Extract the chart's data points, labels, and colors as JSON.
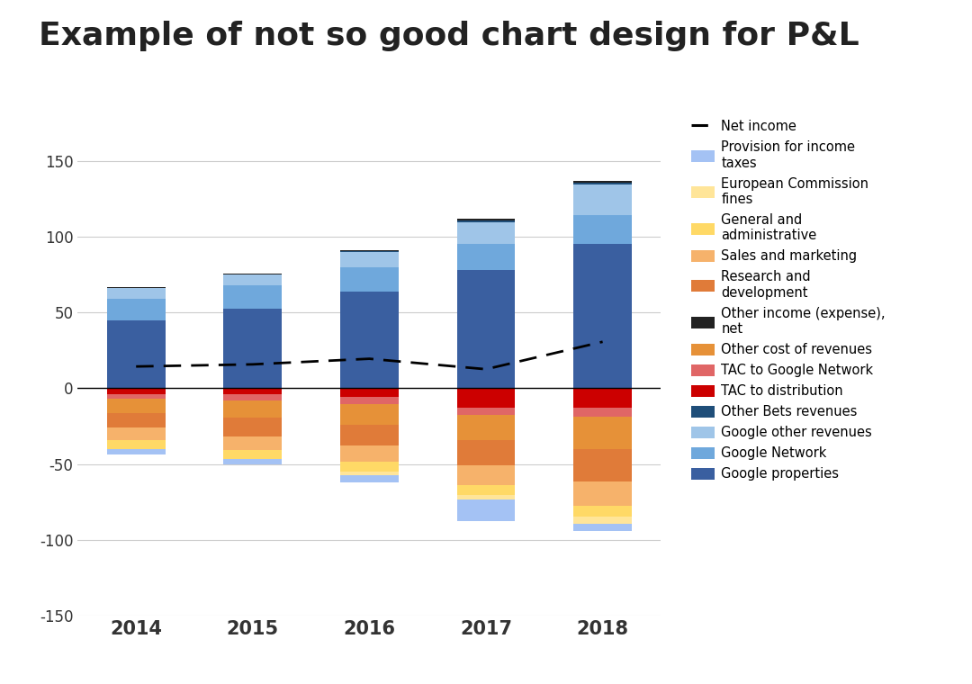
{
  "title": "Example of not so good chart design for P&L",
  "years": [
    "2014",
    "2015",
    "2016",
    "2017",
    "2018"
  ],
  "net_income": [
    14.4,
    15.8,
    19.5,
    12.6,
    30.7
  ],
  "positive_segments": [
    {
      "label": "Google properties",
      "values": [
        45.1,
        52.4,
        63.8,
        77.8,
        95.4
      ],
      "color": "#3a5fa0"
    },
    {
      "label": "Google Network",
      "values": [
        14.1,
        15.5,
        16.0,
        17.6,
        19.1
      ],
      "color": "#6fa8dc"
    },
    {
      "label": "Google other revenues",
      "values": [
        6.9,
        7.2,
        10.1,
        14.4,
        19.9
      ],
      "color": "#9fc5e8"
    },
    {
      "label": "Other Bets revenues",
      "values": [
        0.0,
        0.0,
        0.8,
        1.2,
        1.2
      ],
      "color": "#1f4e79"
    },
    {
      "label": "Other income (expense), net",
      "values": [
        0.9,
        0.3,
        0.4,
        1.0,
        1.2
      ],
      "color": "#222222"
    }
  ],
  "negative_segments": [
    {
      "label": "TAC to distribution",
      "values": [
        -3.6,
        -4.1,
        -5.9,
        -12.6,
        -12.6
      ],
      "color": "#cc0000"
    },
    {
      "label": "TAC to Google Network",
      "values": [
        -3.4,
        -3.8,
        -4.4,
        -5.0,
        -6.1
      ],
      "color": "#e06666"
    },
    {
      "label": "Other cost of revenues",
      "values": [
        -9.3,
        -11.4,
        -13.8,
        -16.5,
        -21.4
      ],
      "color": "#e69138"
    },
    {
      "label": "Research and development",
      "values": [
        -9.8,
        -12.3,
        -13.9,
        -16.6,
        -21.4
      ],
      "color": "#e07b39"
    },
    {
      "label": "Sales and marketing",
      "values": [
        -8.1,
        -9.1,
        -10.5,
        -12.9,
        -16.3
      ],
      "color": "#f6b26b"
    },
    {
      "label": "General and administrative",
      "values": [
        -5.9,
        -6.1,
        -6.3,
        -6.9,
        -6.8
      ],
      "color": "#ffd966"
    },
    {
      "label": "European Commission fines",
      "values": [
        0.0,
        0.0,
        -2.7,
        -2.7,
        -5.1
      ],
      "color": "#ffe599"
    },
    {
      "label": "Provision for income taxes",
      "values": [
        -3.6,
        -3.3,
        -4.7,
        -14.5,
        -4.2
      ],
      "color": "#a4c2f4"
    }
  ],
  "legend_items": [
    {
      "label": "Net income",
      "color": "#000000",
      "type": "line"
    },
    {
      "label": "Provision for income\ntaxes",
      "color": "#a4c2f4",
      "type": "bar"
    },
    {
      "label": "European Commission\nfines",
      "color": "#ffe599",
      "type": "bar"
    },
    {
      "label": "General and\nadministrative",
      "color": "#ffd966",
      "type": "bar"
    },
    {
      "label": "Sales and marketing",
      "color": "#f6b26b",
      "type": "bar"
    },
    {
      "label": "Research and\ndevelopment",
      "color": "#e07b39",
      "type": "bar"
    },
    {
      "label": "Other income (expense),\nnet",
      "color": "#222222",
      "type": "bar"
    },
    {
      "label": "Other cost of revenues",
      "color": "#e69138",
      "type": "bar"
    },
    {
      "label": "TAC to Google Network",
      "color": "#e06666",
      "type": "bar"
    },
    {
      "label": "TAC to distribution",
      "color": "#cc0000",
      "type": "bar"
    },
    {
      "label": "Other Bets revenues",
      "color": "#1f4e79",
      "type": "bar"
    },
    {
      "label": "Google other revenues",
      "color": "#9fc5e8",
      "type": "bar"
    },
    {
      "label": "Google Network",
      "color": "#6fa8dc",
      "type": "bar"
    },
    {
      "label": "Google properties",
      "color": "#3a5fa0",
      "type": "bar"
    }
  ],
  "ylim": [
    -150,
    175
  ],
  "yticks": [
    -150,
    -100,
    -50,
    0,
    50,
    100,
    150
  ],
  "background_color": "#ffffff"
}
